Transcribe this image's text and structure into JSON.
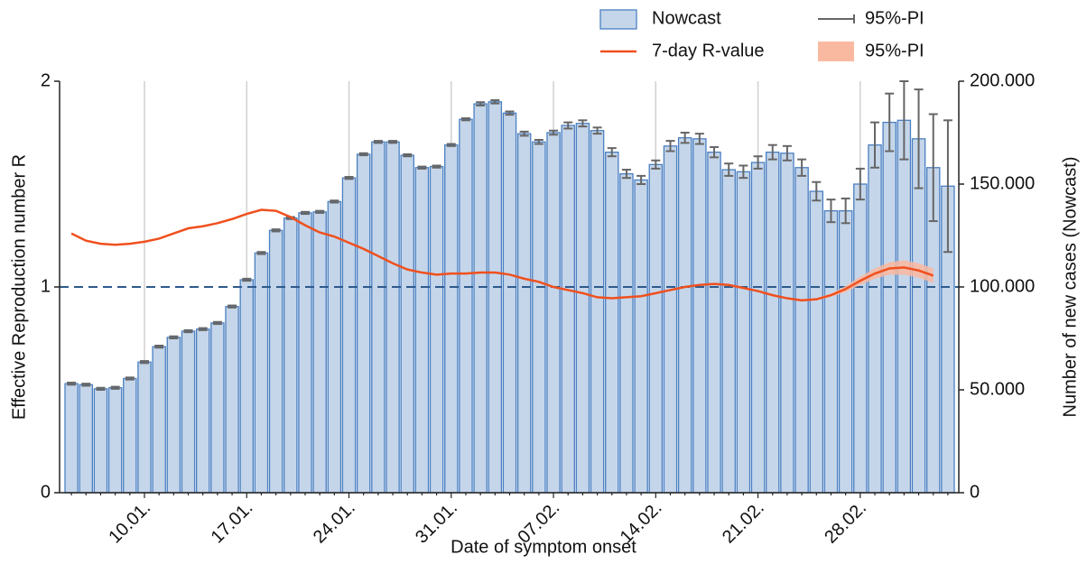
{
  "chart_data": {
    "type": "bar",
    "x_label": "Date of symptom onset",
    "y_label": "Effective Reproduction number R",
    "y2_label": "Number of new cases (Nowcast)",
    "ylim": [
      0,
      2
    ],
    "yticks": [
      0,
      1,
      2
    ],
    "y2lim": [
      0,
      200000
    ],
    "y2ticks": [
      0,
      {
        "value": 50000,
        "label": "50.000"
      },
      {
        "value": 100000,
        "label": "100.000"
      },
      {
        "value": 150000,
        "label": "150.000"
      },
      {
        "value": 200000,
        "label": "200.000"
      }
    ],
    "reference_line": 1,
    "grid": true,
    "categories": [
      null,
      null,
      null,
      null,
      null,
      "10.01.",
      null,
      null,
      null,
      null,
      null,
      null,
      "17.01.",
      null,
      null,
      null,
      null,
      null,
      null,
      "24.01.",
      null,
      null,
      null,
      null,
      null,
      null,
      "31.01.",
      null,
      null,
      null,
      null,
      null,
      null,
      "07.02.",
      null,
      null,
      null,
      null,
      null,
      null,
      "14.02.",
      null,
      null,
      null,
      null,
      null,
      null,
      "21.02.",
      null,
      null,
      null,
      null,
      null,
      null,
      "28.02.",
      null,
      null,
      null,
      null,
      null,
      null
    ],
    "series": [
      {
        "name": "Nowcast",
        "type": "bar",
        "axis": "y2",
        "color": "#c5d6ea",
        "edge_color": "#4a7fc1",
        "values": [
          53000,
          52500,
          50500,
          51000,
          55500,
          63500,
          71000,
          75500,
          78500,
          79500,
          82500,
          90500,
          103500,
          116500,
          127500,
          133500,
          136000,
          136500,
          141500,
          153000,
          164500,
          170500,
          170500,
          164000,
          158000,
          158500,
          169000,
          181500,
          189000,
          190000,
          184500,
          174500,
          170500,
          175000,
          178500,
          179500,
          176000,
          165500,
          155000,
          152000,
          159500,
          168500,
          172500,
          172000,
          165500,
          157000,
          156000,
          160500,
          165500,
          165000,
          158000,
          146500,
          137000,
          137000,
          150000,
          169000,
          180000,
          181000,
          172000,
          158000,
          149000
        ],
        "errors": [
          500,
          500,
          500,
          500,
          500,
          500,
          500,
          500,
          500,
          500,
          500,
          500,
          500,
          500,
          500,
          500,
          500,
          500,
          500,
          500,
          500,
          500,
          500,
          500,
          500,
          500,
          500,
          500,
          800,
          800,
          800,
          1000,
          1000,
          1000,
          1500,
          1500,
          1500,
          2000,
          2000,
          2000,
          2000,
          2500,
          2500,
          2500,
          2500,
          3000,
          3000,
          3000,
          3500,
          3500,
          4000,
          4500,
          5500,
          6000,
          7500,
          11000,
          14000,
          19000,
          24000,
          26000,
          32000
        ],
        "interval_label": "95%-PI",
        "interval_color": "#666666"
      },
      {
        "name": "7-day R-value",
        "type": "line",
        "color": "#f0501e",
        "values": [
          1.26,
          1.225,
          1.21,
          1.205,
          1.21,
          1.22,
          1.235,
          1.26,
          1.285,
          1.295,
          1.31,
          1.33,
          1.355,
          1.375,
          1.37,
          1.34,
          1.3,
          1.265,
          1.245,
          1.215,
          1.185,
          1.15,
          1.115,
          1.085,
          1.07,
          1.06,
          1.065,
          1.065,
          1.07,
          1.07,
          1.06,
          1.04,
          1.025,
          1.0,
          0.985,
          0.97,
          0.95,
          0.945,
          0.95,
          0.955,
          0.97,
          0.985,
          1.0,
          1.01,
          1.015,
          1.01,
          0.995,
          0.98,
          0.96,
          0.945,
          0.935,
          0.94,
          0.96,
          0.99,
          1.03,
          1.065,
          1.09,
          1.095,
          1.08,
          1.055,
          null
        ],
        "lower": [
          null,
          null,
          null,
          null,
          null,
          null,
          null,
          null,
          null,
          null,
          null,
          null,
          null,
          null,
          null,
          null,
          null,
          null,
          null,
          null,
          null,
          null,
          null,
          null,
          null,
          null,
          null,
          null,
          null,
          null,
          null,
          null,
          null,
          null,
          null,
          null,
          null,
          null,
          null,
          null,
          null,
          null,
          null,
          null,
          null,
          null,
          null,
          null,
          null,
          null,
          0.93,
          0.935,
          0.952,
          0.975,
          1.01,
          1.04,
          1.06,
          1.06,
          1.045,
          1.02,
          null
        ],
        "upper": [
          null,
          null,
          null,
          null,
          null,
          null,
          null,
          null,
          null,
          null,
          null,
          null,
          null,
          null,
          null,
          null,
          null,
          null,
          null,
          null,
          null,
          null,
          null,
          null,
          null,
          null,
          null,
          null,
          null,
          null,
          null,
          null,
          null,
          null,
          null,
          null,
          null,
          null,
          null,
          null,
          null,
          null,
          null,
          null,
          null,
          null,
          null,
          null,
          null,
          null,
          0.94,
          0.945,
          0.968,
          1.005,
          1.05,
          1.09,
          1.12,
          1.13,
          1.115,
          1.09,
          null
        ],
        "interval_label": "95%-PI",
        "interval_color": "#f9b9a0"
      }
    ]
  }
}
